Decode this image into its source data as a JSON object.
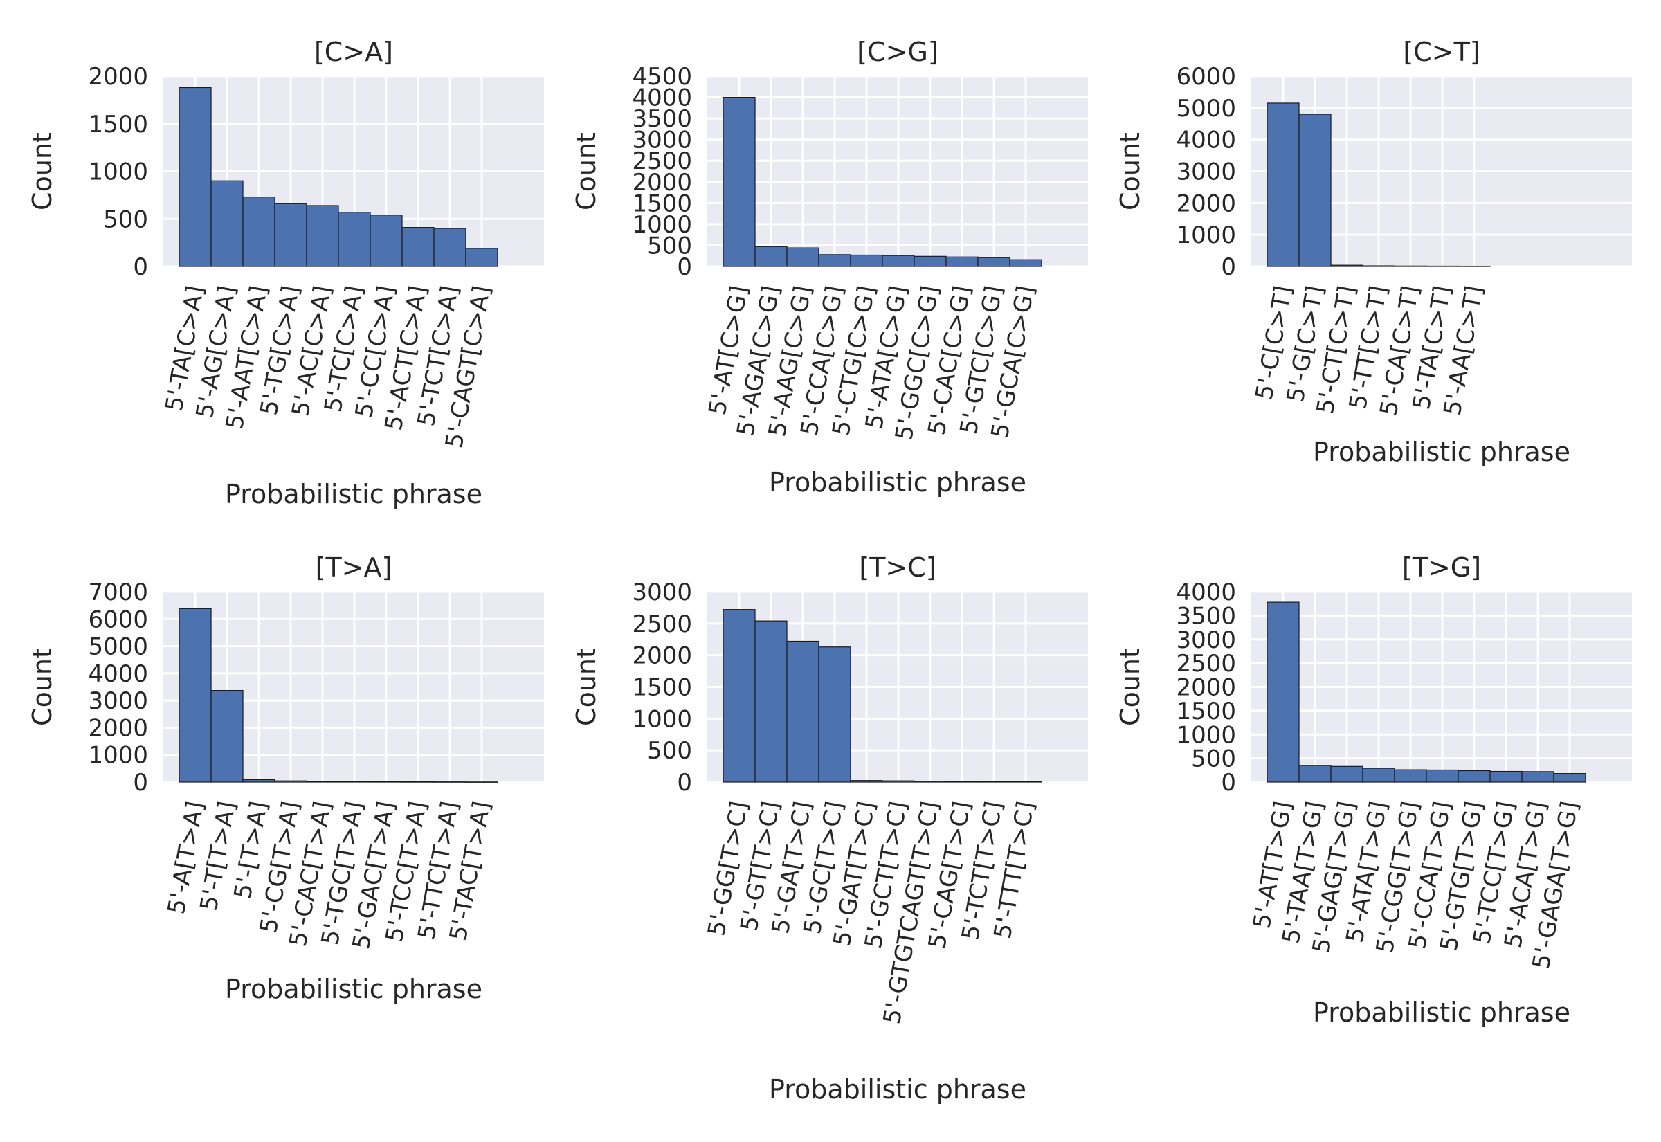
{
  "chart_data": [
    {
      "type": "bar",
      "title": "[C>A]",
      "xlabel": "Probabilistic phrase",
      "ylabel": "Count",
      "ylim": [
        0,
        2000
      ],
      "yticks": [
        0,
        500,
        1000,
        1500,
        2000
      ],
      "grid": true,
      "categories": [
        "5'-TA[C>A]",
        "5'-AG[C>A]",
        "5'-AAT[C>A]",
        "5'-TG[C>A]",
        "5'-AC[C>A]",
        "5'-TC[C>A]",
        "5'-CC[C>A]",
        "5'-ACT[C>A]",
        "5'-TCT[C>A]",
        "5'-CAGT[C>A]"
      ],
      "values": [
        1880,
        900,
        730,
        660,
        640,
        570,
        540,
        410,
        400,
        190
      ]
    },
    {
      "type": "bar",
      "title": "[C>G]",
      "xlabel": "Probabilistic phrase",
      "ylabel": "Count",
      "ylim": [
        0,
        4500
      ],
      "yticks": [
        0,
        500,
        1000,
        1500,
        2000,
        2500,
        3000,
        3500,
        4000,
        4500
      ],
      "grid": true,
      "categories": [
        "5'-AT[C>G]",
        "5'-AGA[C>G]",
        "5'-AAG[C>G]",
        "5'-CCA[C>G]",
        "5'-CTG[C>G]",
        "5'-ATA[C>G]",
        "5'-GGC[C>G]",
        "5'-CAC[C>G]",
        "5'-GTC[C>G]",
        "5'-GCA[C>G]"
      ],
      "values": [
        4000,
        470,
        440,
        280,
        270,
        260,
        240,
        225,
        210,
        160
      ]
    },
    {
      "type": "bar",
      "title": "[C>T]",
      "xlabel": "Probabilistic phrase",
      "ylabel": "Count",
      "ylim": [
        0,
        6000
      ],
      "yticks": [
        0,
        1000,
        2000,
        3000,
        4000,
        5000,
        6000
      ],
      "grid": true,
      "categories": [
        "5'-C[C>T]",
        "5'-G[C>T]",
        "5'-CT[C>T]",
        "5'-TT[C>T]",
        "5'-CA[C>T]",
        "5'-TA[C>T]",
        "5'-AA[C>T]"
      ],
      "values": [
        5150,
        4800,
        40,
        20,
        15,
        12,
        10
      ]
    },
    {
      "type": "bar",
      "title": "[T>A]",
      "xlabel": "Probabilistic phrase",
      "ylabel": "Count",
      "ylim": [
        0,
        7000
      ],
      "yticks": [
        0,
        1000,
        2000,
        3000,
        4000,
        5000,
        6000,
        7000
      ],
      "grid": true,
      "categories": [
        "5'-A[T>A]",
        "5'-T[T>A]",
        "5'-[T>A]",
        "5'-CG[T>A]",
        "5'-CAC[T>A]",
        "5'-TGC[T>A]",
        "5'-GAC[T>A]",
        "5'-TCC[T>A]",
        "5'-TTC[T>A]",
        "5'-TAC[T>A]"
      ],
      "values": [
        6380,
        3370,
        90,
        45,
        30,
        15,
        12,
        10,
        8,
        5
      ]
    },
    {
      "type": "bar",
      "title": "[T>C]",
      "xlabel": "Probabilistic phrase",
      "ylabel": "Count",
      "ylim": [
        0,
        3000
      ],
      "yticks": [
        0,
        500,
        1000,
        1500,
        2000,
        2500,
        3000
      ],
      "grid": true,
      "categories": [
        "5'-GG[T>C]",
        "5'-GT[T>C]",
        "5'-GA[T>C]",
        "5'-GC[T>C]",
        "5'-GAT[T>C]",
        "5'-GCT[T>C]",
        "5'-GTGTCAGT[T>C]",
        "5'-CAG[T>C]",
        "5'-TCT[T>C]",
        "5'-TTT[T>C]"
      ],
      "values": [
        2720,
        2540,
        2220,
        2130,
        25,
        20,
        15,
        12,
        10,
        8
      ]
    },
    {
      "type": "bar",
      "title": "[T>G]",
      "xlabel": "Probabilistic phrase",
      "ylabel": "Count",
      "ylim": [
        0,
        4000
      ],
      "yticks": [
        0,
        500,
        1000,
        1500,
        2000,
        2500,
        3000,
        3500,
        4000
      ],
      "grid": true,
      "categories": [
        "5'-AT[T>G]",
        "5'-TAA[T>G]",
        "5'-GAG[T>G]",
        "5'-ATA[T>G]",
        "5'-CGG[T>G]",
        "5'-CCA[T>G]",
        "5'-GTG[T>G]",
        "5'-TCC[T>G]",
        "5'-ACA[T>G]",
        "5'-GAGA[T>G]"
      ],
      "values": [
        3780,
        350,
        330,
        290,
        260,
        255,
        240,
        225,
        220,
        180
      ]
    }
  ],
  "colors": {
    "bar_fill": "#4c72b0",
    "bar_edge": "#1a1a1a",
    "plot_bg": "#eaeaf2",
    "grid": "#ffffff",
    "text": "#262626"
  }
}
